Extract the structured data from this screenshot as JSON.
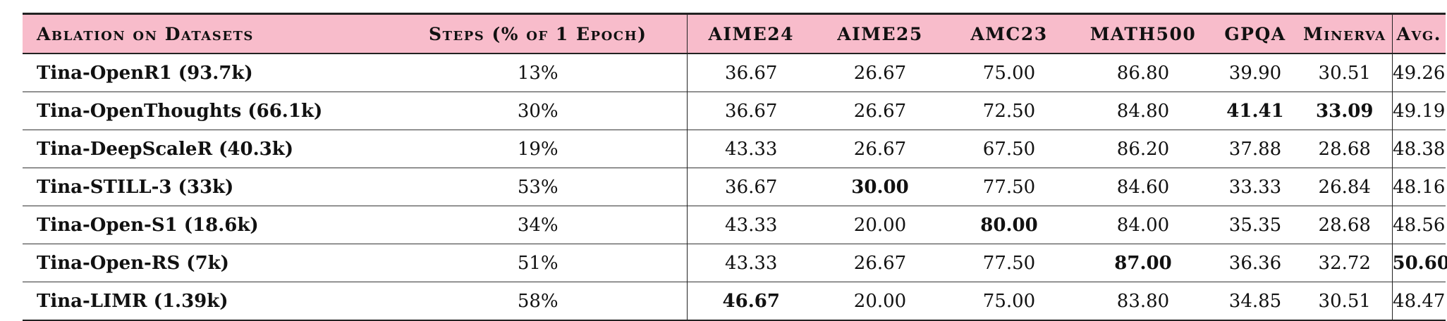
{
  "table": {
    "headers": {
      "name": "Ablation on Datasets",
      "steps": "Steps (% of 1 Epoch)",
      "aime24": "AIME24",
      "aime25": "AIME25",
      "amc23": "AMC23",
      "math500": "MATH500",
      "gpqa": "GPQA",
      "minerva": "Minerva",
      "avg": "Avg."
    },
    "rows": [
      {
        "name": "Tina-OpenR1 (93.7k)",
        "steps": "13%",
        "aime24": "36.67",
        "aime25": "26.67",
        "amc23": "75.00",
        "math500": "86.80",
        "gpqa": "39.90",
        "minerva": "30.51",
        "avg": "49.26"
      },
      {
        "name": "Tina-OpenThoughts (66.1k)",
        "steps": "30%",
        "aime24": "36.67",
        "aime25": "26.67",
        "amc23": "72.50",
        "math500": "84.80",
        "gpqa": "41.41",
        "minerva": "33.09",
        "avg": "49.19"
      },
      {
        "name": "Tina-DeepScaleR (40.3k)",
        "steps": "19%",
        "aime24": "43.33",
        "aime25": "26.67",
        "amc23": "67.50",
        "math500": "86.20",
        "gpqa": "37.88",
        "minerva": "28.68",
        "avg": "48.38"
      },
      {
        "name": "Tina-STILL-3 (33k)",
        "steps": "53%",
        "aime24": "36.67",
        "aime25": "30.00",
        "amc23": "77.50",
        "math500": "84.60",
        "gpqa": "33.33",
        "minerva": "26.84",
        "avg": "48.16"
      },
      {
        "name": "Tina-Open-S1 (18.6k)",
        "steps": "34%",
        "aime24": "43.33",
        "aime25": "20.00",
        "amc23": "80.00",
        "math500": "84.00",
        "gpqa": "35.35",
        "minerva": "28.68",
        "avg": "48.56"
      },
      {
        "name": "Tina-Open-RS (7k)",
        "steps": "51%",
        "aime24": "43.33",
        "aime25": "26.67",
        "amc23": "77.50",
        "math500": "87.00",
        "gpqa": "36.36",
        "minerva": "32.72",
        "avg": "50.60"
      },
      {
        "name": "Tina-LIMR (1.39k)",
        "steps": "58%",
        "aime24": "46.67",
        "aime25": "20.00",
        "amc23": "75.00",
        "math500": "83.80",
        "gpqa": "34.85",
        "minerva": "30.51",
        "avg": "48.47"
      }
    ],
    "header_bg_color": "#f8bccb",
    "bold_cells": [
      "1.gpqa",
      "1.minerva",
      "3.aime25",
      "4.amc23",
      "5.math500",
      "5.avg",
      "6.aime24"
    ]
  }
}
